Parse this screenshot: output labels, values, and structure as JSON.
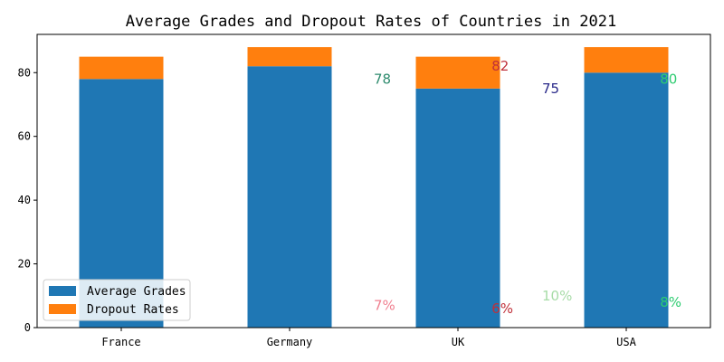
{
  "chart_data": {
    "type": "bar",
    "stacked": true,
    "title": "Average Grades and Dropout Rates of Countries in 2021",
    "xlabel": "",
    "ylabel": "",
    "categories": [
      "France",
      "Germany",
      "UK",
      "USA"
    ],
    "series": [
      {
        "name": "Average Grades",
        "values": [
          78,
          82,
          75,
          80
        ],
        "color": "#1f77b4"
      },
      {
        "name": "Dropout Rates",
        "values": [
          7,
          6,
          10,
          8
        ],
        "color": "#ff7f0e"
      }
    ],
    "ylim": [
      0,
      92
    ],
    "yticks": [
      0,
      20,
      40,
      60,
      80
    ],
    "grid": false,
    "legend_position": "bottom-left",
    "annotations": [
      {
        "text": "78",
        "x": 1.5,
        "y": 78,
        "color": "#2e8b6e"
      },
      {
        "text": "82",
        "x": 2.2,
        "y": 82,
        "color": "#c0303a"
      },
      {
        "text": "75",
        "x": 2.5,
        "y": 75,
        "color": "#2a2a8a"
      },
      {
        "text": "80",
        "x": 3.2,
        "y": 78,
        "color": "#2ecc71"
      },
      {
        "text": "7%",
        "x": 1.5,
        "y": 7,
        "color": "#f08090"
      },
      {
        "text": "6%",
        "x": 2.2,
        "y": 6,
        "color": "#c0303a"
      },
      {
        "text": "10%",
        "x": 2.5,
        "y": 10,
        "color": "#a8dca8"
      },
      {
        "text": "8%",
        "x": 3.2,
        "y": 8,
        "color": "#2ecc71"
      }
    ]
  }
}
